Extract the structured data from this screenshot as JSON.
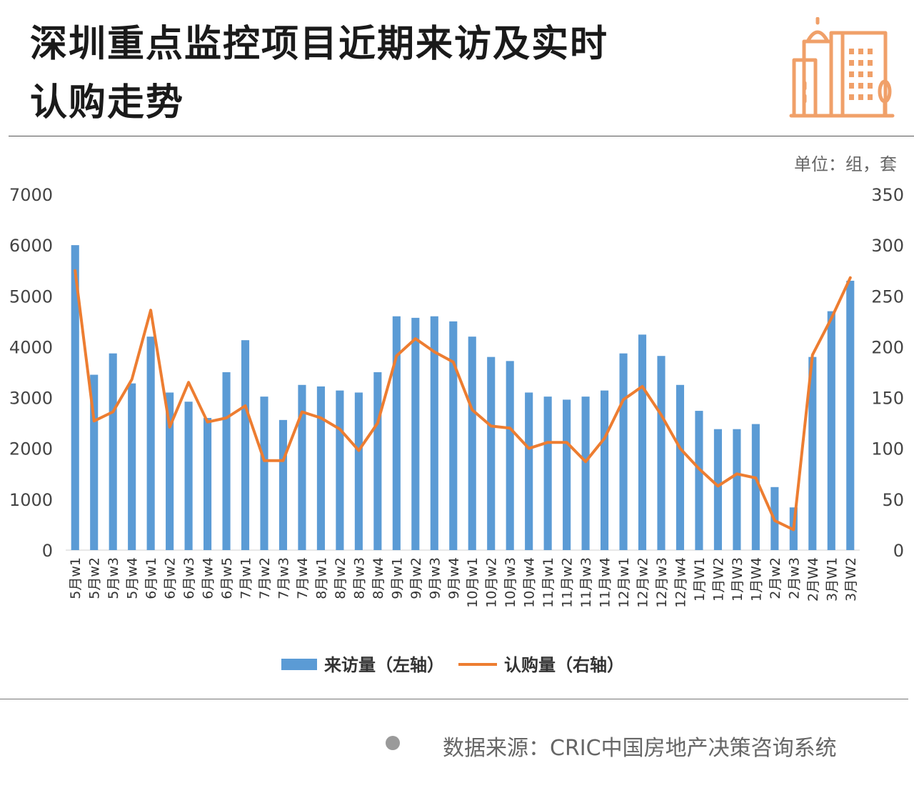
{
  "title": {
    "line1": "深圳重点监控项目近期来访及实时",
    "line2": "认购走势"
  },
  "unit": "单位：组，套",
  "source": "数据来源：CRIC中国房地产决策咨询系统",
  "colors": {
    "bar": "#5b9bd5",
    "line": "#ed7d31",
    "logo": "#f0a069"
  },
  "icons": {
    "logo": "city-buildings-icon",
    "source_bullet": "bullet-icon"
  },
  "chart_data": {
    "type": "bar",
    "categories": [
      "5月w1",
      "5月w2",
      "5月w3",
      "5月w4",
      "6月w1",
      "6月w2",
      "6月w3",
      "6月w4",
      "6月w5",
      "7月w1",
      "7月w2",
      "7月w3",
      "7月w4",
      "8月w1",
      "8月w2",
      "8月w3",
      "8月w4",
      "9月w1",
      "9月w2",
      "9月w3",
      "9月w4",
      "10月w1",
      "10月w2",
      "10月w3",
      "10月w4",
      "11月w1",
      "11月w2",
      "11月w3",
      "11月w4",
      "12月w1",
      "12月w2",
      "12月w3",
      "12月w4",
      "1月W1",
      "1月W2",
      "1月W3",
      "1月W4",
      "2月w2",
      "2月w3",
      "2月W4",
      "3月W1",
      "3月W2"
    ],
    "series": [
      {
        "name": "来访量（左轴）",
        "type": "bar",
        "axis": "left",
        "values": [
          6000,
          3450,
          3870,
          3280,
          4200,
          3100,
          2920,
          2600,
          3500,
          4130,
          3020,
          2560,
          3250,
          3220,
          3140,
          3100,
          3500,
          4600,
          4570,
          4600,
          4500,
          4200,
          3800,
          3720,
          3100,
          3020,
          2960,
          3020,
          3140,
          3870,
          4240,
          3820,
          3250,
          2740,
          2380,
          2380,
          2480,
          1240,
          840,
          3800,
          4700,
          5300
        ]
      },
      {
        "name": "认购量（右轴）",
        "type": "line",
        "axis": "right",
        "values": [
          275,
          127,
          136,
          168,
          236,
          121,
          165,
          126,
          130,
          142,
          88,
          88,
          136,
          130,
          119,
          98,
          125,
          191,
          208,
          195,
          185,
          138,
          122,
          120,
          100,
          106,
          106,
          87,
          110,
          148,
          161,
          133,
          100,
          80,
          63,
          75,
          71,
          29,
          20,
          192,
          228,
          268
        ]
      }
    ],
    "y_left": {
      "min": 0,
      "max": 7000,
      "ticks": [
        0,
        1000,
        2000,
        3000,
        4000,
        5000,
        6000,
        7000
      ]
    },
    "y_right": {
      "min": 0,
      "max": 350,
      "ticks": [
        0,
        50,
        100,
        150,
        200,
        250,
        300,
        350
      ]
    },
    "legend": {
      "position": "bottom",
      "items": [
        "来访量（左轴）",
        "认购量（右轴）"
      ]
    },
    "grid": false
  }
}
